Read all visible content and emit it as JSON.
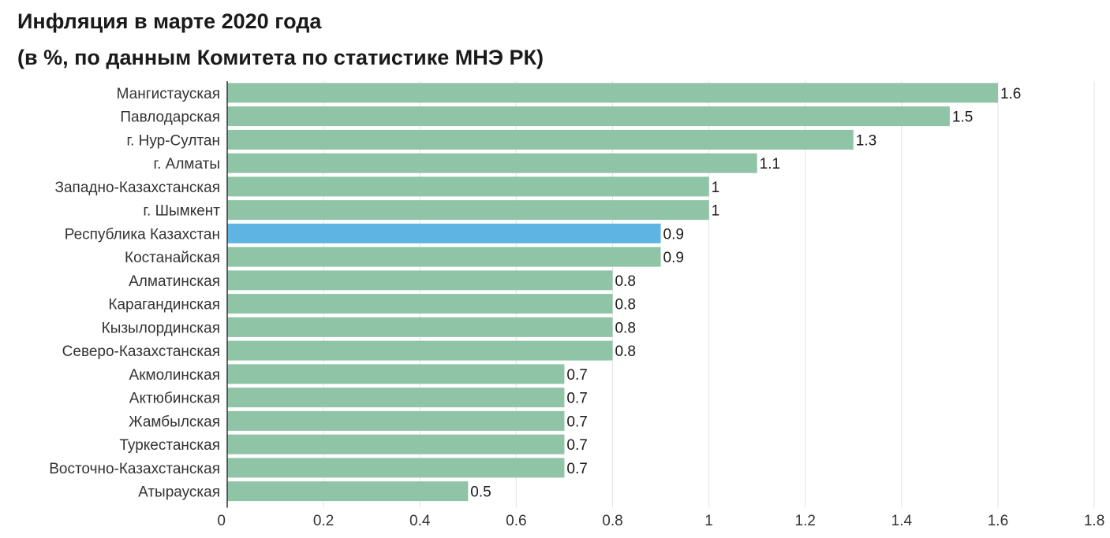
{
  "chart_data": {
    "type": "bar",
    "orientation": "horizontal",
    "title": "Инфляция в марте 2020 года",
    "subtitle": "(в %, по данным Комитета по статистике МНЭ РК)",
    "categories": [
      "Мангистауская",
      "Павлодарская",
      "г. Нур-Султан",
      "г. Алматы",
      "Западно-Казахстанская",
      "г. Шымкент",
      "Республика Казахстан",
      "Костанайская",
      "Алматинская",
      "Карагандинская",
      "Кызылординская",
      "Северо-Казахстанская",
      "Акмолинская",
      "Актюбинская",
      "Жамбылская",
      "Туркестанская",
      "Восточно-Казахстанская",
      "Атырауская"
    ],
    "values": [
      1.6,
      1.5,
      1.3,
      1.1,
      1,
      1,
      0.9,
      0.9,
      0.8,
      0.8,
      0.8,
      0.8,
      0.7,
      0.7,
      0.7,
      0.7,
      0.7,
      0.5
    ],
    "value_labels": [
      "1.6",
      "1.5",
      "1.3",
      "1.1",
      "1",
      "1",
      "0.9",
      "0.9",
      "0.8",
      "0.8",
      "0.8",
      "0.8",
      "0.7",
      "0.7",
      "0.7",
      "0.7",
      "0.7",
      "0.5"
    ],
    "highlight_category": "Республика Казахстан",
    "xlim": [
      0,
      1.8
    ],
    "xticks": [
      0,
      0.2,
      0.4,
      0.6,
      0.8,
      1,
      1.2,
      1.4,
      1.6,
      1.8
    ],
    "xtick_labels": [
      "0",
      "0.2",
      "0.4",
      "0.6",
      "0.8",
      "1",
      "1.2",
      "1.4",
      "1.6",
      "1.8"
    ],
    "grid": "vertical",
    "colors": {
      "bar": "#8fc4a7",
      "highlight": "#5eb4e3",
      "grid": "#e3e3e3",
      "axis": "#333333"
    }
  }
}
